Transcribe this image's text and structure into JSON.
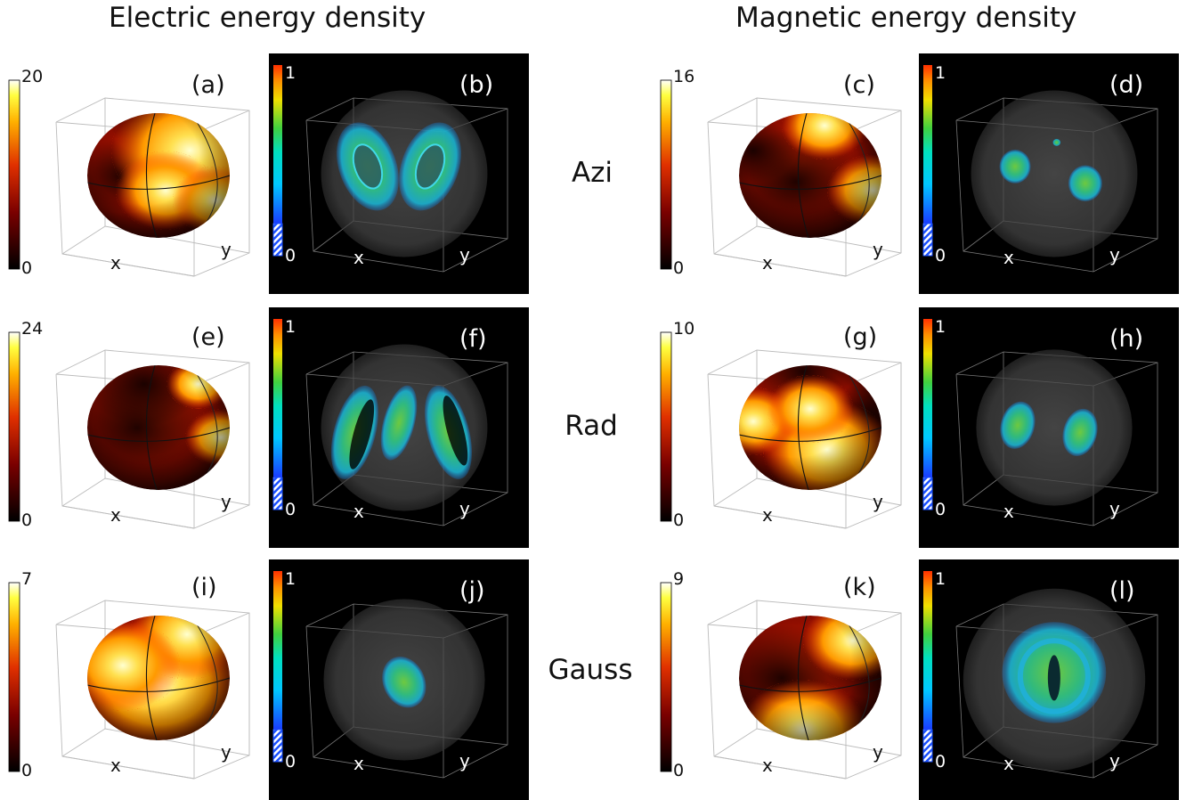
{
  "headers": {
    "electric": "Electric energy density",
    "magnetic": "Magnetic energy density"
  },
  "row_labels": [
    "Azi",
    "Rad",
    "Gauss"
  ],
  "axis_labels": {
    "x": "x",
    "y": "y"
  },
  "sphere_panels": [
    {
      "id": "a",
      "label": "(a)",
      "cb_max": "20",
      "cb_min": "0",
      "hot": [
        [
          0.72,
          0.3,
          0.55
        ],
        [
          0.55,
          0.62,
          0.35
        ],
        [
          0.9,
          0.7,
          0.3
        ]
      ],
      "dark": [
        [
          0.46,
          0.08,
          0.3
        ],
        [
          0.25,
          0.5,
          0.35
        ]
      ]
    },
    {
      "id": "c",
      "label": "(c)",
      "cb_max": "16",
      "cb_min": "0",
      "hot": [
        [
          0.94,
          0.62,
          0.32
        ],
        [
          0.6,
          0.1,
          0.3
        ]
      ],
      "dark": [
        [
          0.4,
          0.55,
          0.5
        ],
        [
          0.1,
          0.3,
          0.3
        ]
      ]
    },
    {
      "id": "e",
      "label": "(e)",
      "cb_max": "24",
      "cb_min": "0",
      "hot": [
        [
          0.94,
          0.58,
          0.25
        ],
        [
          0.78,
          0.15,
          0.22
        ]
      ],
      "dark": [
        [
          0.35,
          0.5,
          0.55
        ],
        [
          0.4,
          0.15,
          0.4
        ]
      ]
    },
    {
      "id": "g",
      "label": "(g)",
      "cb_max": "10",
      "cb_min": "0",
      "hot": [
        [
          0.62,
          0.68,
          0.45
        ],
        [
          0.1,
          0.45,
          0.3
        ],
        [
          0.5,
          0.35,
          0.3
        ]
      ],
      "dark": [
        [
          0.45,
          0.05,
          0.35
        ],
        [
          0.9,
          0.4,
          0.3
        ]
      ]
    },
    {
      "id": "i",
      "label": "(i)",
      "cb_max": "7",
      "cb_min": "0",
      "hot": [
        [
          0.5,
          0.55,
          0.6
        ],
        [
          0.7,
          0.15,
          0.4
        ],
        [
          0.25,
          0.4,
          0.4
        ]
      ],
      "dark": [
        [
          0.6,
          0.12,
          0.25
        ],
        [
          0.9,
          0.25,
          0.2
        ]
      ]
    },
    {
      "id": "k",
      "label": "(k)",
      "cb_max": "9",
      "cb_min": "0",
      "hot": [
        [
          0.45,
          0.92,
          0.45
        ],
        [
          0.8,
          0.2,
          0.35
        ]
      ],
      "dark": [
        [
          0.3,
          0.5,
          0.5
        ],
        [
          0.9,
          0.4,
          0.3
        ]
      ]
    }
  ],
  "volume_panels": [
    {
      "id": "b",
      "label": "(b)",
      "cb_max": "1",
      "cb_min": "0",
      "sphere_r": 0.32,
      "blobs": [
        [
          0.38,
          0.47,
          0.11,
          0.19,
          -20,
          1
        ],
        [
          0.62,
          0.47,
          0.11,
          0.19,
          20,
          1
        ]
      ]
    },
    {
      "id": "d",
      "label": "(d)",
      "cb_max": "1",
      "cb_min": "0",
      "sphere_r": 0.32,
      "blobs": [
        [
          0.37,
          0.47,
          0.06,
          0.07,
          0,
          0
        ],
        [
          0.64,
          0.54,
          0.065,
          0.075,
          0,
          0
        ],
        [
          0.53,
          0.37,
          0.015,
          0.015,
          0,
          0
        ]
      ]
    },
    {
      "id": "f",
      "label": "(f)",
      "cb_max": "1",
      "cb_min": "0",
      "sphere_r": 0.32,
      "blobs": [
        [
          0.33,
          0.52,
          0.08,
          0.2,
          15,
          2
        ],
        [
          0.5,
          0.48,
          0.06,
          0.16,
          15,
          0
        ],
        [
          0.69,
          0.52,
          0.08,
          0.2,
          -15,
          2
        ]
      ]
    },
    {
      "id": "h",
      "label": "(h)",
      "cb_max": "1",
      "cb_min": "0",
      "sphere_r": 0.3,
      "blobs": [
        [
          0.38,
          0.49,
          0.065,
          0.1,
          15,
          0
        ],
        [
          0.62,
          0.52,
          0.065,
          0.1,
          15,
          0
        ]
      ]
    },
    {
      "id": "j",
      "label": "(j)",
      "cb_max": "1",
      "cb_min": "0",
      "sphere_r": 0.31,
      "blobs": [
        [
          0.52,
          0.51,
          0.08,
          0.11,
          -25,
          0
        ]
      ]
    },
    {
      "id": "l",
      "label": "(l)",
      "cb_max": "1",
      "cb_min": "0",
      "sphere_r": 0.35,
      "blobs": [
        [
          0.52,
          0.47,
          0.2,
          0.21,
          0,
          3
        ]
      ]
    }
  ]
}
